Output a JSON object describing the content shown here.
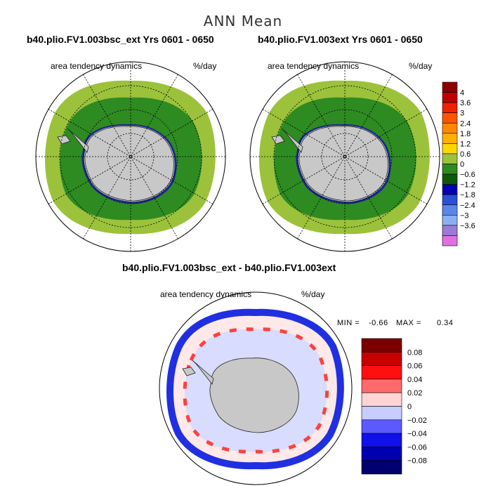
{
  "main_title": "ANN Mean",
  "panels": [
    {
      "title": "b40.plio.FV1.003bsc_ext  Yrs 0601 - 0650",
      "left_label": "area tendency dynamics",
      "right_label": "%/day"
    },
    {
      "title": "b40.plio.FV1.003ext  Yrs 0601 - 0650",
      "left_label": "area tendency dynamics",
      "right_label": "%/day"
    },
    {
      "title": "b40.plio.FV1.003bsc_ext - b40.plio.FV1.003ext",
      "left_label": "area tendency dynamics",
      "right_label": "%/day"
    }
  ],
  "stats": {
    "min_label": "MIN =",
    "min_value": "-0.66",
    "max_label": "MAX =",
    "max_value": "0.34"
  },
  "colorbar_top": {
    "labels": [
      "4",
      "3.6",
      "3",
      "2.4",
      "1.8",
      "1.2",
      "0.6",
      "0",
      "−0.6",
      "−1.2",
      "−1.8",
      "−2.4",
      "−3",
      "−3.6"
    ],
    "colors": [
      "#8b0000",
      "#c00000",
      "#ee2200",
      "#ff5500",
      "#ff8800",
      "#ffb000",
      "#ffd700",
      "#9cc23c",
      "#2e8b22",
      "#0a5a0a",
      "#0000b0",
      "#2b50d8",
      "#5a86e8",
      "#8ab0f2",
      "#9a7ad8",
      "#e070e0"
    ]
  },
  "colorbar_diff": {
    "labels": [
      "0.08",
      "0.06",
      "0.04",
      "0.02",
      "0",
      "−0.02",
      "−0.04",
      "−0.06",
      "−0.08"
    ],
    "colors": [
      "#7a0000",
      "#c80000",
      "#ff1010",
      "#ff6a6a",
      "#ffd4d4",
      "#c8ccff",
      "#5a5aff",
      "#1010e8",
      "#0000b0",
      "#000070"
    ]
  }
}
